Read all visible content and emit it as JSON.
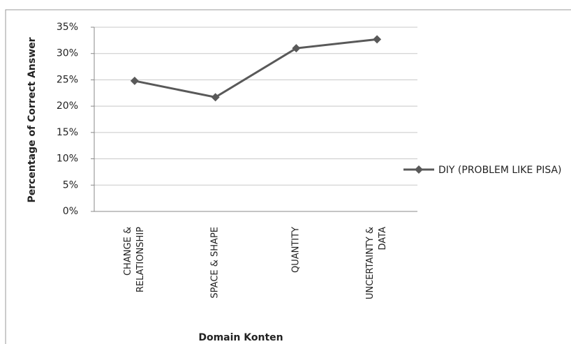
{
  "chart_data": {
    "type": "line",
    "y_label": "Percentage of Correct Answer",
    "x_label": "Domain Konten",
    "categories": [
      "CHANGE & RELATIONSHIP",
      "SPACE & SHAPE",
      "QUANTITY",
      "UNCERTAINTY & DATA"
    ],
    "series": [
      {
        "name": "DIY (PROBLEM LIKE PISA)",
        "color": "#595959",
        "values": [
          24.8,
          21.7,
          31.0,
          32.7
        ]
      }
    ],
    "ylim": [
      0,
      35
    ],
    "yticks": [
      {
        "value": 0,
        "label": "0%"
      },
      {
        "value": 5,
        "label": "5%"
      },
      {
        "value": 10,
        "label": "10%"
      },
      {
        "value": 15,
        "label": "15%"
      },
      {
        "value": 20,
        "label": "20%"
      },
      {
        "value": 25,
        "label": "25%"
      },
      {
        "value": 30,
        "label": "30%"
      },
      {
        "value": 35,
        "label": "35%"
      }
    ],
    "grid": true,
    "legend": "right"
  }
}
